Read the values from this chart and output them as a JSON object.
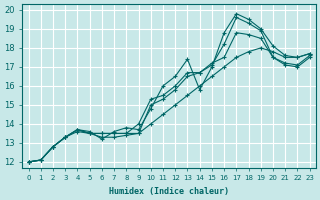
{
  "xlabel": "Humidex (Indice chaleur)",
  "ylabel": "",
  "background_color": "#c8e8e8",
  "grid_color": "#ffffff",
  "line_color": "#006666",
  "xlim": [
    0,
    23
  ],
  "ylim": [
    12,
    20
  ],
  "xtick_labels": [
    "0",
    "1",
    "2",
    "3",
    "4",
    "5",
    "6",
    "7",
    "8",
    "9",
    "10",
    "11",
    "12",
    "13",
    "14",
    "15",
    "16",
    "17",
    "18",
    "19",
    "20",
    "21",
    "22",
    "23"
  ],
  "ytick_labels": [
    "12",
    "13",
    "14",
    "15",
    "16",
    "17",
    "18",
    "19",
    "20"
  ],
  "lines": [
    {
      "x": [
        0,
        1,
        2,
        3,
        4,
        5,
        6,
        7,
        8,
        9,
        10,
        11,
        12,
        13,
        14,
        15,
        16,
        17,
        18,
        19,
        20,
        21,
        22,
        23
      ],
      "y": [
        12.0,
        12.1,
        12.8,
        13.3,
        13.7,
        13.6,
        13.2,
        13.6,
        13.8,
        13.7,
        14.8,
        16.0,
        16.5,
        17.4,
        15.8,
        17.0,
        18.8,
        19.8,
        19.5,
        19.0,
        18.1,
        17.6,
        17.5,
        17.7
      ]
    },
    {
      "x": [
        0,
        1,
        2,
        3,
        4,
        5,
        6,
        7,
        8,
        9,
        10,
        11,
        12,
        13,
        14,
        15,
        16,
        17,
        18,
        19,
        20,
        21,
        22,
        23
      ],
      "y": [
        12.0,
        12.1,
        12.8,
        13.3,
        13.7,
        13.5,
        13.3,
        13.3,
        13.4,
        13.5,
        15.0,
        15.3,
        15.8,
        16.5,
        16.7,
        17.1,
        18.2,
        19.6,
        19.3,
        18.9,
        17.5,
        17.2,
        17.1,
        17.6
      ]
    },
    {
      "x": [
        0,
        1,
        2,
        3,
        4,
        5,
        6,
        7,
        8,
        9,
        10,
        11,
        12,
        13,
        14,
        15,
        16,
        17,
        18,
        19,
        20,
        21,
        22,
        23
      ],
      "y": [
        12.0,
        12.1,
        12.8,
        13.3,
        13.7,
        13.5,
        13.5,
        13.5,
        13.5,
        14.0,
        15.3,
        15.5,
        16.0,
        16.7,
        16.7,
        17.2,
        17.5,
        18.8,
        18.7,
        18.5,
        17.5,
        17.1,
        17.0,
        17.5
      ]
    },
    {
      "x": [
        0,
        1,
        2,
        3,
        4,
        5,
        6,
        7,
        8,
        9,
        10,
        11,
        12,
        13,
        14,
        15,
        16,
        17,
        18,
        19,
        20,
        21,
        22,
        23
      ],
      "y": [
        12.0,
        12.1,
        12.8,
        13.3,
        13.6,
        13.5,
        13.5,
        13.5,
        13.5,
        13.5,
        14.0,
        14.5,
        15.0,
        15.5,
        16.0,
        16.5,
        17.0,
        17.5,
        17.8,
        18.0,
        17.8,
        17.5,
        17.5,
        17.7
      ]
    }
  ]
}
